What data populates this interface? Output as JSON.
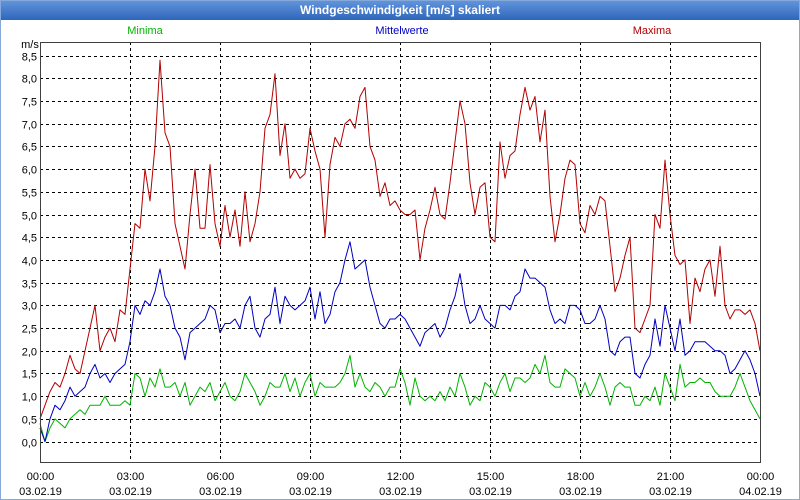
{
  "chart_data": {
    "type": "line",
    "title": "Windgeschwindigkeit [m/s] skaliert",
    "xlabel": "",
    "ylabel": "m/s",
    "xlim": [
      "03.02.19 00:00",
      "04.02.19 00:00"
    ],
    "ylim": [
      -0.45,
      8.8
    ],
    "grid": true,
    "legend_position": "top",
    "x_ticks": [
      {
        "time": "00:00",
        "date": "03.02.19"
      },
      {
        "time": "03:00",
        "date": "03.02.19"
      },
      {
        "time": "06:00",
        "date": "03.02.19"
      },
      {
        "time": "09:00",
        "date": "03.02.19"
      },
      {
        "time": "12:00",
        "date": "03.02.19"
      },
      {
        "time": "15:00",
        "date": "03.02.19"
      },
      {
        "time": "18:00",
        "date": "03.02.19"
      },
      {
        "time": "21:00",
        "date": "03.02.19"
      },
      {
        "time": "00:00",
        "date": "04.02.19"
      }
    ],
    "y_ticks": [
      {
        "value": 0.0,
        "label": "0,0"
      },
      {
        "value": 0.5,
        "label": "0,5"
      },
      {
        "value": 1.0,
        "label": "1,0"
      },
      {
        "value": 1.5,
        "label": "1,5"
      },
      {
        "value": 2.0,
        "label": "2,0"
      },
      {
        "value": 2.5,
        "label": "2,5"
      },
      {
        "value": 3.0,
        "label": "3,0"
      },
      {
        "value": 3.5,
        "label": "3,5"
      },
      {
        "value": 4.0,
        "label": "4,0"
      },
      {
        "value": 4.5,
        "label": "4,5"
      },
      {
        "value": 5.0,
        "label": "5,0"
      },
      {
        "value": 5.5,
        "label": "5,5"
      },
      {
        "value": 6.0,
        "label": "6,0"
      },
      {
        "value": 6.5,
        "label": "6,5"
      },
      {
        "value": 7.0,
        "label": "7,0"
      },
      {
        "value": 7.5,
        "label": "7,5"
      },
      {
        "value": 8.0,
        "label": "8,0"
      },
      {
        "value": 8.5,
        "label": "8,5"
      }
    ],
    "x": [
      "03.02.19 00:00",
      "03.02.19 00:10",
      "03.02.19 00:20",
      "03.02.19 00:30",
      "03.02.19 00:40",
      "03.02.19 00:50",
      "03.02.19 01:00",
      "03.02.19 01:10",
      "03.02.19 01:20",
      "03.02.19 01:30",
      "03.02.19 01:40",
      "03.02.19 01:50",
      "03.02.19 02:00",
      "03.02.19 02:10",
      "03.02.19 02:20",
      "03.02.19 02:30",
      "03.02.19 02:40",
      "03.02.19 02:50",
      "03.02.19 03:00",
      "03.02.19 03:10",
      "03.02.19 03:20",
      "03.02.19 03:30",
      "03.02.19 03:40",
      "03.02.19 03:50",
      "03.02.19 04:00",
      "03.02.19 04:10",
      "03.02.19 04:20",
      "03.02.19 04:30",
      "03.02.19 04:40",
      "03.02.19 04:50",
      "03.02.19 05:00",
      "03.02.19 05:10",
      "03.02.19 05:20",
      "03.02.19 05:30",
      "03.02.19 05:40",
      "03.02.19 05:50",
      "03.02.19 06:00",
      "03.02.19 06:10",
      "03.02.19 06:20",
      "03.02.19 06:30",
      "03.02.19 06:40",
      "03.02.19 06:50",
      "03.02.19 07:00",
      "03.02.19 07:10",
      "03.02.19 07:20",
      "03.02.19 07:30",
      "03.02.19 07:40",
      "03.02.19 07:50",
      "03.02.19 08:00",
      "03.02.19 08:10",
      "03.02.19 08:20",
      "03.02.19 08:30",
      "03.02.19 08:40",
      "03.02.19 08:50",
      "03.02.19 09:00",
      "03.02.19 09:10",
      "03.02.19 09:20",
      "03.02.19 09:30",
      "03.02.19 09:40",
      "03.02.19 09:50",
      "03.02.19 10:00",
      "03.02.19 10:10",
      "03.02.19 10:20",
      "03.02.19 10:30",
      "03.02.19 10:40",
      "03.02.19 10:50",
      "03.02.19 11:00",
      "03.02.19 11:10",
      "03.02.19 11:20",
      "03.02.19 11:30",
      "03.02.19 11:40",
      "03.02.19 11:50",
      "03.02.19 12:00",
      "03.02.19 12:10",
      "03.02.19 12:20",
      "03.02.19 12:30",
      "03.02.19 12:40",
      "03.02.19 12:50",
      "03.02.19 13:00",
      "03.02.19 13:10",
      "03.02.19 13:20",
      "03.02.19 13:30",
      "03.02.19 13:40",
      "03.02.19 13:50",
      "03.02.19 14:00",
      "03.02.19 14:10",
      "03.02.19 14:20",
      "03.02.19 14:30",
      "03.02.19 14:40",
      "03.02.19 14:50",
      "03.02.19 15:00",
      "03.02.19 15:10",
      "03.02.19 15:20",
      "03.02.19 15:30",
      "03.02.19 15:40",
      "03.02.19 15:50",
      "03.02.19 16:00",
      "03.02.19 16:10",
      "03.02.19 16:20",
      "03.02.19 16:30",
      "03.02.19 16:40",
      "03.02.19 16:50",
      "03.02.19 17:00",
      "03.02.19 17:10",
      "03.02.19 17:20",
      "03.02.19 17:30",
      "03.02.19 17:40",
      "03.02.19 17:50",
      "03.02.19 18:00",
      "03.02.19 18:10",
      "03.02.19 18:20",
      "03.02.19 18:30",
      "03.02.19 18:40",
      "03.02.19 18:50",
      "03.02.19 19:00",
      "03.02.19 19:10",
      "03.02.19 19:20",
      "03.02.19 19:30",
      "03.02.19 19:40",
      "03.02.19 19:50",
      "03.02.19 20:00",
      "03.02.19 20:10",
      "03.02.19 20:20",
      "03.02.19 20:30",
      "03.02.19 20:40",
      "03.02.19 20:50",
      "03.02.19 21:00",
      "03.02.19 21:10",
      "03.02.19 21:20",
      "03.02.19 21:30",
      "03.02.19 21:40",
      "03.02.19 21:50",
      "03.02.19 22:00",
      "03.02.19 22:10",
      "03.02.19 22:20",
      "03.02.19 22:30",
      "03.02.19 22:40",
      "03.02.19 22:50",
      "03.02.19 23:00",
      "03.02.19 23:10",
      "03.02.19 23:20",
      "03.02.19 23:30",
      "03.02.19 23:40",
      "03.02.19 23:50",
      "04.02.19 00:00"
    ],
    "series": [
      {
        "name": "Minima",
        "color": "#00b400",
        "values": [
          0.4,
          0.0,
          0.3,
          0.5,
          0.4,
          0.3,
          0.5,
          0.6,
          0.7,
          0.6,
          0.8,
          0.8,
          0.8,
          1.0,
          0.8,
          0.8,
          0.8,
          0.9,
          0.8,
          1.5,
          1.4,
          1.0,
          1.4,
          1.2,
          1.6,
          1.2,
          1.2,
          1.3,
          1.0,
          1.3,
          0.8,
          1.0,
          1.2,
          1.1,
          1.3,
          0.9,
          1.1,
          1.3,
          1.0,
          0.9,
          1.1,
          1.5,
          1.3,
          1.1,
          0.8,
          1.0,
          1.3,
          1.2,
          1.2,
          1.5,
          1.1,
          1.4,
          1.0,
          1.3,
          1.5,
          1.0,
          1.3,
          1.2,
          1.2,
          1.2,
          1.3,
          1.5,
          1.9,
          1.2,
          1.5,
          1.2,
          1.1,
          1.3,
          1.2,
          1.0,
          1.2,
          1.2,
          1.6,
          1.3,
          0.8,
          1.4,
          1.0,
          0.9,
          1.0,
          0.9,
          1.1,
          0.9,
          1.2,
          1.0,
          1.5,
          1.2,
          0.8,
          1.0,
          0.9,
          1.3,
          1.2,
          1.0,
          1.3,
          1.5,
          1.1,
          1.4,
          1.4,
          1.3,
          1.4,
          1.7,
          1.5,
          1.9,
          1.3,
          1.2,
          1.2,
          1.6,
          1.5,
          1.4,
          1.0,
          1.3,
          1.0,
          1.2,
          1.5,
          1.2,
          0.8,
          1.2,
          1.3,
          1.2,
          1.2,
          0.8,
          0.8,
          1.0,
          0.9,
          1.2,
          0.8,
          1.5,
          1.2,
          0.9,
          1.7,
          1.2,
          1.3,
          1.3,
          1.4,
          1.3,
          1.3,
          1.1,
          1.0,
          1.0,
          1.0,
          1.2,
          1.5,
          1.2,
          0.9,
          0.7,
          0.5
        ]
      },
      {
        "name": "Mittelwerte",
        "color": "#0000c0",
        "values": [
          0.3,
          0.0,
          0.5,
          0.8,
          0.7,
          0.9,
          1.2,
          1.0,
          1.1,
          1.2,
          1.5,
          1.7,
          1.4,
          1.5,
          1.3,
          1.5,
          1.6,
          1.7,
          2.2,
          3.0,
          2.8,
          3.1,
          3.0,
          3.3,
          3.8,
          3.2,
          3.0,
          2.5,
          2.3,
          1.8,
          2.4,
          2.5,
          2.6,
          2.7,
          3.0,
          2.9,
          2.4,
          2.6,
          2.6,
          2.7,
          2.5,
          3.0,
          3.2,
          2.5,
          2.3,
          2.7,
          2.8,
          3.4,
          2.6,
          3.2,
          3.0,
          2.9,
          3.0,
          3.1,
          3.4,
          2.7,
          3.3,
          2.6,
          2.8,
          3.3,
          3.5,
          4.0,
          4.4,
          3.8,
          3.9,
          4.0,
          3.4,
          3.0,
          2.6,
          2.5,
          2.7,
          2.7,
          2.8,
          2.7,
          2.5,
          2.3,
          2.1,
          2.4,
          2.5,
          2.6,
          2.3,
          2.5,
          2.9,
          3.2,
          3.7,
          3.0,
          2.6,
          2.7,
          3.0,
          2.7,
          2.6,
          2.5,
          3.0,
          3.0,
          2.9,
          3.2,
          3.3,
          3.8,
          3.6,
          3.6,
          3.5,
          3.4,
          2.9,
          2.6,
          2.7,
          2.6,
          3.0,
          3.0,
          2.9,
          2.6,
          2.6,
          2.7,
          3.0,
          2.7,
          2.0,
          1.9,
          2.2,
          2.3,
          2.3,
          1.5,
          1.4,
          1.7,
          1.9,
          2.7,
          2.1,
          3.0,
          2.5,
          2.0,
          2.7,
          1.9,
          2.0,
          2.2,
          2.2,
          2.2,
          2.1,
          2.0,
          2.0,
          1.9,
          1.5,
          1.6,
          1.8,
          2.0,
          1.8,
          1.5,
          1.0
        ]
      },
      {
        "name": "Maxima",
        "color": "#b40000",
        "values": [
          0.5,
          0.8,
          1.1,
          1.3,
          1.2,
          1.5,
          1.9,
          1.6,
          1.5,
          2.0,
          2.5,
          3.0,
          2.0,
          2.3,
          2.5,
          2.2,
          2.9,
          2.8,
          3.8,
          4.8,
          4.7,
          6.0,
          5.3,
          6.5,
          8.4,
          6.8,
          6.5,
          4.8,
          4.3,
          3.8,
          5.0,
          6.0,
          4.7,
          4.7,
          6.1,
          4.8,
          4.3,
          5.2,
          4.5,
          5.1,
          4.3,
          5.5,
          4.4,
          4.8,
          5.5,
          6.9,
          7.2,
          8.1,
          6.3,
          7.0,
          5.8,
          6.0,
          5.8,
          5.9,
          6.9,
          6.4,
          6.0,
          4.5,
          6.1,
          6.7,
          6.5,
          7.0,
          7.1,
          6.9,
          7.6,
          7.8,
          6.5,
          6.2,
          5.4,
          5.7,
          5.2,
          5.3,
          5.1,
          5.0,
          5.0,
          5.1,
          4.0,
          4.7,
          5.1,
          5.6,
          5.0,
          4.9,
          5.7,
          6.6,
          7.5,
          7.0,
          5.7,
          5.0,
          5.6,
          5.7,
          4.5,
          4.4,
          6.6,
          5.8,
          6.3,
          6.4,
          7.2,
          7.8,
          7.3,
          7.6,
          6.6,
          7.3,
          5.4,
          4.4,
          5.0,
          5.8,
          6.2,
          6.1,
          4.8,
          4.6,
          5.2,
          5.0,
          5.4,
          5.3,
          4.3,
          3.3,
          3.6,
          4.1,
          4.5,
          2.5,
          2.4,
          2.7,
          3.0,
          5.0,
          4.7,
          6.2,
          5.0,
          4.1,
          3.9,
          4.0,
          2.6,
          3.6,
          3.3,
          3.8,
          4.0,
          3.2,
          4.3,
          3.0,
          2.7,
          2.9,
          2.9,
          2.8,
          2.9,
          2.6,
          2.0
        ]
      }
    ]
  }
}
